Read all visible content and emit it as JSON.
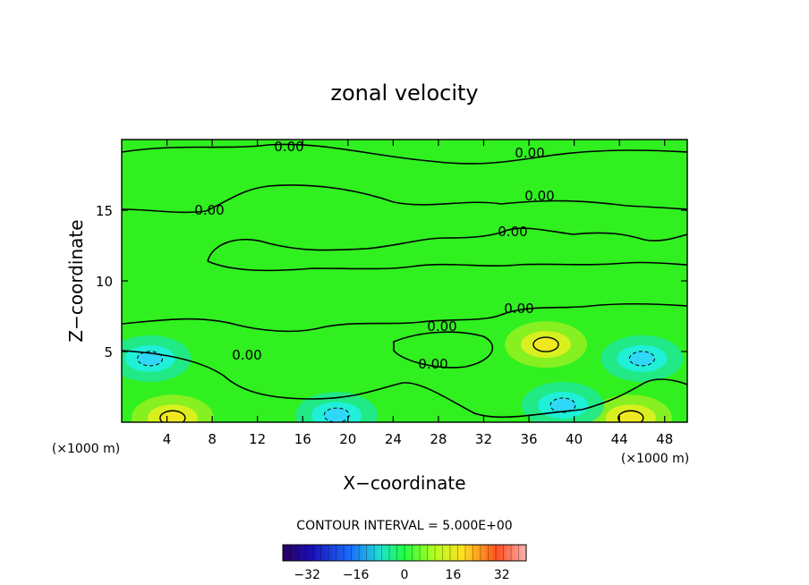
{
  "chart_data": {
    "type": "heatmap",
    "title": "zonal velocity",
    "xlabel": "X−coordinate",
    "ylabel": "Z−coordinate",
    "x_unit_left": "(×1000 m)",
    "x_unit_right": "(×1000 m)",
    "xlim": [
      0,
      50
    ],
    "ylim": [
      0,
      20
    ],
    "x_ticks": [
      4,
      8,
      12,
      16,
      20,
      24,
      28,
      32,
      36,
      40,
      44,
      48
    ],
    "x_tick_labels": [
      "4",
      "8",
      "12",
      "16",
      "20",
      "24",
      "28",
      "32",
      "36",
      "40",
      "44",
      "48"
    ],
    "y_ticks": [
      5,
      10,
      15
    ],
    "y_tick_labels": [
      "5",
      "10",
      "15"
    ],
    "contour_interval_text": "CONTOUR INTERVAL = 5.000E+00",
    "contour_label": "0.00",
    "colorbar": {
      "range": [
        -40,
        40
      ],
      "ticks": [
        -32,
        -16,
        0,
        16,
        32
      ],
      "tick_labels": [
        "−32",
        "−16",
        "0",
        "16",
        "32"
      ]
    },
    "features": [
      {
        "x": 4.5,
        "z": 0.3,
        "value": 12,
        "sign": "positive"
      },
      {
        "x": 37.5,
        "z": 5.5,
        "value": 12,
        "sign": "positive"
      },
      {
        "x": 45,
        "z": 0.3,
        "value": 10,
        "sign": "positive"
      },
      {
        "x": 19,
        "z": 0.5,
        "value": -10,
        "sign": "negative"
      },
      {
        "x": 39,
        "z": 1.2,
        "value": -10,
        "sign": "negative"
      },
      {
        "x": 2.5,
        "z": 4.5,
        "value": -6,
        "sign": "negative"
      },
      {
        "x": 46,
        "z": 4.5,
        "value": -6,
        "sign": "negative"
      }
    ]
  }
}
